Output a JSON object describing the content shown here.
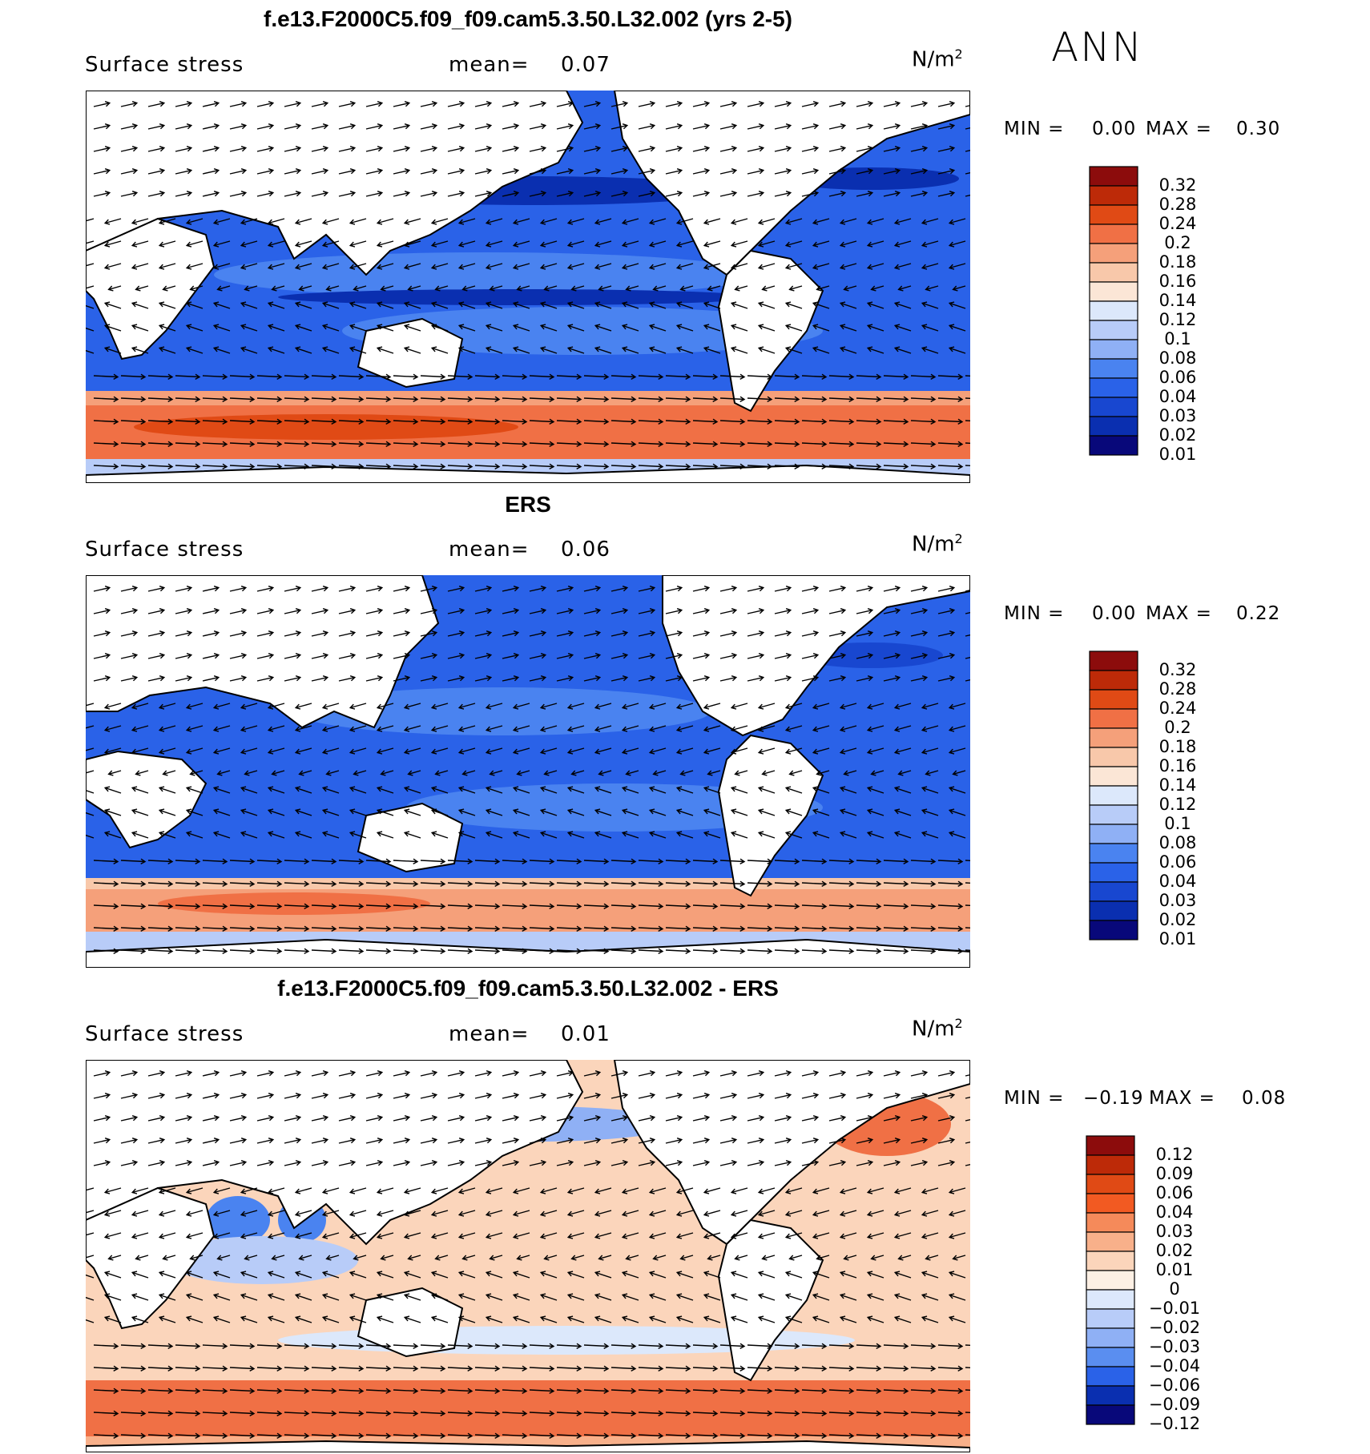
{
  "season": "ANN",
  "colors": {
    "bwr13": [
      "#08087a",
      "#0a2fb0",
      "#1847d0",
      "#2a62e8",
      "#4a83f0",
      "#8fb0f5",
      "#b8ccf8",
      "#dce8fb",
      "#fbe6d6",
      "#f8c8aa",
      "#f5a07a",
      "#f07045",
      "#e04a15",
      "#bd2a08",
      "#8c0c0c"
    ],
    "blue_light": "#c8d8f8",
    "land": "#ffffff",
    "coast": "#000000"
  },
  "panels": [
    {
      "title": "f.e13.F2000C5.f09_f09.cam5.3.50.L32.002 (yrs 2-5)",
      "variable": "Surface stress",
      "mean_label": "mean=",
      "mean_value": "0.07",
      "units": "N/m",
      "units_sup": "2",
      "min_label": "MIN =",
      "min_value": "0.00",
      "max_label": "MAX =",
      "max_value": "0.30",
      "colorbar": {
        "labels": [
          "0.32",
          "0.28",
          "0.24",
          "0.2",
          "0.18",
          "0.16",
          "0.14",
          "0.12",
          "0.1",
          "0.08",
          "0.06",
          "0.04",
          "0.03",
          "0.02",
          "0.01"
        ],
        "colors": [
          "#8c0c0c",
          "#bd2a08",
          "#e04a15",
          "#f07045",
          "#f5a07a",
          "#f8c8aa",
          "#fbe6d6",
          "#dce8fb",
          "#b8ccf8",
          "#8fb0f5",
          "#4a83f0",
          "#2a62e8",
          "#1847d0",
          "#0a2fb0",
          "#08087a"
        ]
      }
    },
    {
      "title": "ERS",
      "variable": "Surface stress",
      "mean_label": "mean=",
      "mean_value": "0.06",
      "units": "N/m",
      "units_sup": "2",
      "min_label": "MIN =",
      "min_value": "0.00",
      "max_label": "MAX =",
      "max_value": "0.22",
      "colorbar": {
        "labels": [
          "0.32",
          "0.28",
          "0.24",
          "0.2",
          "0.18",
          "0.16",
          "0.14",
          "0.12",
          "0.1",
          "0.08",
          "0.06",
          "0.04",
          "0.03",
          "0.02",
          "0.01"
        ],
        "colors": [
          "#8c0c0c",
          "#bd2a08",
          "#e04a15",
          "#f07045",
          "#f5a07a",
          "#f8c8aa",
          "#fbe6d6",
          "#dce8fb",
          "#b8ccf8",
          "#8fb0f5",
          "#4a83f0",
          "#2a62e8",
          "#1847d0",
          "#0a2fb0",
          "#08087a"
        ]
      }
    },
    {
      "title": "f.e13.F2000C5.f09_f09.cam5.3.50.L32.002 - ERS",
      "variable": "Surface stress",
      "mean_label": "mean=",
      "mean_value": "0.01",
      "units": "N/m",
      "units_sup": "2",
      "min_label": "MIN =",
      "min_value": "−0.19",
      "max_label": "MAX =",
      "max_value": "0.08",
      "colorbar": {
        "labels": [
          "0.12",
          "0.09",
          "0.06",
          "0.04",
          "0.03",
          "0.02",
          "0.01",
          "0",
          "−0.01",
          "−0.02",
          "−0.03",
          "−0.04",
          "−0.06",
          "−0.09",
          "−0.12"
        ],
        "colors": [
          "#8c0c0c",
          "#bd2a08",
          "#e04a15",
          "#f25a22",
          "#f58a5a",
          "#f8b08a",
          "#fbd5bb",
          "#fdf0e4",
          "#dce8fb",
          "#b8ccf8",
          "#8fb0f5",
          "#5a8ef0",
          "#2a62e8",
          "#0a2fb0",
          "#08087a"
        ]
      }
    }
  ]
}
